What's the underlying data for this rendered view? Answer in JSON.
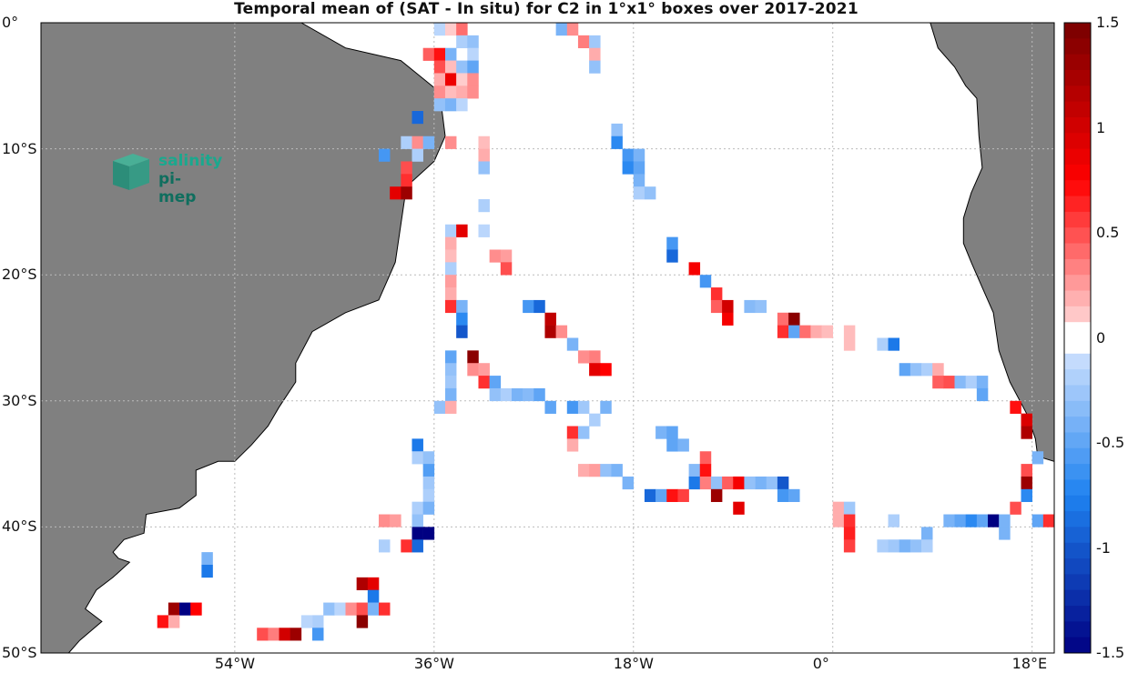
{
  "title": "Temporal mean of (SAT - In situ) for C2 in 1°x1° boxes over 2017-2021",
  "logo": {
    "line1": "salinity",
    "line2": "pi-mep"
  },
  "axes": {
    "x_ticks": [
      {
        "value": -54,
        "label": "54°W"
      },
      {
        "value": -36,
        "label": "36°W"
      },
      {
        "value": -18,
        "label": "18°W"
      },
      {
        "value": 0,
        "label": "0°"
      },
      {
        "value": 18,
        "label": "18°E"
      }
    ],
    "y_ticks": [
      {
        "value": 0,
        "label": "0°"
      },
      {
        "value": -10,
        "label": "10°S"
      },
      {
        "value": -20,
        "label": "20°S"
      },
      {
        "value": -30,
        "label": "30°S"
      },
      {
        "value": -40,
        "label": "40°S"
      },
      {
        "value": -50,
        "label": "50°S"
      }
    ],
    "lon_range": [
      -71.5,
      20
    ],
    "lat_range": [
      -50,
      0
    ],
    "grid": true
  },
  "colorbar": {
    "range": [
      -1.5,
      1.5
    ],
    "levels": 40,
    "ticks": [
      {
        "value": 1.5,
        "label": "1.5"
      },
      {
        "value": 1,
        "label": "1"
      },
      {
        "value": 0.5,
        "label": "0.5"
      },
      {
        "value": 0,
        "label": "0"
      },
      {
        "value": -0.5,
        "label": "-0.5"
      },
      {
        "value": -1,
        "label": "-1"
      },
      {
        "value": -1.5,
        "label": "-1.5"
      }
    ]
  },
  "colors": {
    "land": "#808080",
    "coast": "#000000",
    "ocean": "#ffffff",
    "grid": "#bbbbbb"
  },
  "land": {
    "south_america": [
      [
        -71.5,
        0
      ],
      [
        -48,
        0
      ],
      [
        -44,
        -2
      ],
      [
        -39,
        -3
      ],
      [
        -35.5,
        -5.5
      ],
      [
        -35,
        -9
      ],
      [
        -36,
        -11
      ],
      [
        -38.5,
        -13
      ],
      [
        -39,
        -16
      ],
      [
        -39.5,
        -19
      ],
      [
        -41,
        -22
      ],
      [
        -44,
        -23
      ],
      [
        -47,
        -24.5
      ],
      [
        -48.5,
        -27
      ],
      [
        -48.5,
        -28.5
      ],
      [
        -50,
        -30.5
      ],
      [
        -51,
        -32
      ],
      [
        -52.5,
        -33.5
      ],
      [
        -54,
        -34.8
      ],
      [
        -55.5,
        -34.8
      ],
      [
        -57.5,
        -35.5
      ],
      [
        -57.5,
        -37.5
      ],
      [
        -59,
        -38.5
      ],
      [
        -62,
        -39
      ],
      [
        -62.2,
        -40.5
      ],
      [
        -64,
        -41
      ],
      [
        -65,
        -42
      ],
      [
        -64.5,
        -42.5
      ],
      [
        -63.5,
        -42.8
      ],
      [
        -65,
        -44
      ],
      [
        -66.5,
        -45
      ],
      [
        -67.5,
        -46.5
      ],
      [
        -66,
        -47.5
      ],
      [
        -68,
        -49
      ],
      [
        -69,
        -50
      ],
      [
        -71.5,
        -50
      ]
    ],
    "africa": [
      [
        8.8,
        0
      ],
      [
        9.5,
        -2
      ],
      [
        11,
        -3.5
      ],
      [
        12,
        -5
      ],
      [
        13,
        -6
      ],
      [
        13.2,
        -9
      ],
      [
        13.5,
        -11.5
      ],
      [
        12.5,
        -13.5
      ],
      [
        11.8,
        -15.5
      ],
      [
        11.8,
        -17.5
      ],
      [
        12.5,
        -19
      ],
      [
        13.5,
        -21
      ],
      [
        14.5,
        -23
      ],
      [
        15,
        -26
      ],
      [
        16,
        -28.5
      ],
      [
        17.5,
        -31
      ],
      [
        18.3,
        -33
      ],
      [
        18.5,
        -34.4
      ],
      [
        20,
        -34.8
      ],
      [
        20,
        0
      ]
    ]
  },
  "data_cells": [
    [
      -35.5,
      -0.5,
      -0.15
    ],
    [
      -34.5,
      -0.5,
      0.1
    ],
    [
      -33.5,
      -0.5,
      0.4
    ],
    [
      -24.5,
      -0.5,
      -0.4
    ],
    [
      -23.5,
      -0.5,
      0.3
    ],
    [
      -33.5,
      -1.5,
      -0.2
    ],
    [
      -32.5,
      -1.5,
      -0.3
    ],
    [
      -22.5,
      -1.5,
      0.35
    ],
    [
      -21.5,
      -1.5,
      -0.25
    ],
    [
      -36.5,
      -2.5,
      0.45
    ],
    [
      -35.5,
      -2.5,
      0.7
    ],
    [
      -34.5,
      -2.5,
      -0.4
    ],
    [
      -32.5,
      -2.5,
      -0.15
    ],
    [
      -21.5,
      -2.5,
      0.2
    ],
    [
      -35.5,
      -3.5,
      0.5
    ],
    [
      -34.5,
      -3.5,
      0.15
    ],
    [
      -33.5,
      -3.5,
      -0.3
    ],
    [
      -32.5,
      -3.5,
      -0.5
    ],
    [
      -21.5,
      -3.5,
      -0.3
    ],
    [
      -35.5,
      -4.5,
      0.2
    ],
    [
      -34.5,
      -4.5,
      0.85
    ],
    [
      -33.5,
      -4.5,
      0.1
    ],
    [
      -32.5,
      -4.5,
      0.3
    ],
    [
      -35.5,
      -5.5,
      0.3
    ],
    [
      -34.5,
      -5.5,
      0.15
    ],
    [
      -33.5,
      -5.5,
      0.2
    ],
    [
      -32.5,
      -5.5,
      0.3
    ],
    [
      -35.5,
      -6.5,
      -0.3
    ],
    [
      -34.5,
      -6.5,
      -0.4
    ],
    [
      -33.5,
      -6.5,
      -0.15
    ],
    [
      -37.5,
      -7.5,
      -0.9
    ],
    [
      -19.5,
      -8.5,
      -0.3
    ],
    [
      -38.5,
      -9.5,
      -0.2
    ],
    [
      -37.5,
      -9.5,
      0.3
    ],
    [
      -36.5,
      -9.5,
      -0.4
    ],
    [
      -34.5,
      -9.5,
      0.3
    ],
    [
      -31.5,
      -9.5,
      0.15
    ],
    [
      -19.5,
      -9.5,
      -0.7
    ],
    [
      -40.5,
      -10.5,
      -0.6
    ],
    [
      -37.5,
      -10.5,
      -0.2
    ],
    [
      -31.5,
      -10.5,
      0.2
    ],
    [
      -18.5,
      -10.5,
      -0.6
    ],
    [
      -17.5,
      -10.5,
      -0.4
    ],
    [
      -38.5,
      -11.5,
      0.5
    ],
    [
      -31.5,
      -11.5,
      -0.3
    ],
    [
      -18.5,
      -11.5,
      -0.7
    ],
    [
      -17.5,
      -11.5,
      -0.5
    ],
    [
      -38.5,
      -12.5,
      0.6
    ],
    [
      -17.5,
      -12.5,
      -0.4
    ],
    [
      -39.5,
      -13.5,
      0.9
    ],
    [
      -38.5,
      -13.5,
      1.3
    ],
    [
      -17.5,
      -13.5,
      -0.2
    ],
    [
      -16.5,
      -13.5,
      -0.3
    ],
    [
      -31.5,
      -14.5,
      -0.2
    ],
    [
      -34.5,
      -16.5,
      -0.2
    ],
    [
      -33.5,
      -16.5,
      0.9
    ],
    [
      -31.5,
      -16.5,
      -0.15
    ],
    [
      -34.5,
      -17.5,
      0.2
    ],
    [
      -14.5,
      -17.5,
      -0.6
    ],
    [
      -34.5,
      -18.5,
      0.15
    ],
    [
      -30.5,
      -18.5,
      0.3
    ],
    [
      -29.5,
      -18.5,
      0.25
    ],
    [
      -14.5,
      -18.5,
      -0.9
    ],
    [
      -34.5,
      -19.5,
      -0.2
    ],
    [
      -29.5,
      -19.5,
      0.5
    ],
    [
      -12.5,
      -19.5,
      0.8
    ],
    [
      -34.5,
      -20.5,
      0.25
    ],
    [
      -11.5,
      -20.5,
      -0.6
    ],
    [
      -34.5,
      -21.5,
      0.2
    ],
    [
      -10.5,
      -21.5,
      0.6
    ],
    [
      -34.5,
      -22.5,
      0.6
    ],
    [
      -33.5,
      -22.5,
      -0.4
    ],
    [
      -27.5,
      -22.5,
      -0.6
    ],
    [
      -26.5,
      -22.5,
      -0.9
    ],
    [
      -10.5,
      -22.5,
      0.45
    ],
    [
      -9.5,
      -22.5,
      1.0
    ],
    [
      -7.5,
      -22.5,
      -0.35
    ],
    [
      -6.5,
      -22.5,
      -0.3
    ],
    [
      -33.5,
      -23.5,
      -0.7
    ],
    [
      -25.5,
      -23.5,
      1.1
    ],
    [
      -9.5,
      -23.5,
      0.8
    ],
    [
      -4.5,
      -23.5,
      0.4
    ],
    [
      -3.5,
      -23.5,
      1.4
    ],
    [
      -33.5,
      -24.5,
      -1.0
    ],
    [
      -25.5,
      -24.5,
      1.2
    ],
    [
      -24.5,
      -24.5,
      0.3
    ],
    [
      -4.5,
      -24.5,
      0.6
    ],
    [
      -3.5,
      -24.5,
      -0.5
    ],
    [
      -2.5,
      -24.5,
      0.4
    ],
    [
      -1.5,
      -24.5,
      0.2
    ],
    [
      -0.5,
      -24.5,
      0.15
    ],
    [
      1.5,
      -24.5,
      0.15
    ],
    [
      -23.5,
      -25.5,
      -0.4
    ],
    [
      1.5,
      -25.5,
      0.15
    ],
    [
      4.5,
      -25.5,
      -0.2
    ],
    [
      5.5,
      -25.5,
      -0.8
    ],
    [
      -34.5,
      -26.5,
      -0.5
    ],
    [
      -32.5,
      -26.5,
      1.4
    ],
    [
      -22.5,
      -26.5,
      0.3
    ],
    [
      -21.5,
      -26.5,
      0.35
    ],
    [
      -34.5,
      -27.5,
      -0.3
    ],
    [
      -32.5,
      -27.5,
      0.3
    ],
    [
      -31.5,
      -27.5,
      0.25
    ],
    [
      -21.5,
      -27.5,
      0.9
    ],
    [
      -20.5,
      -27.5,
      0.75
    ],
    [
      6.5,
      -27.5,
      -0.5
    ],
    [
      7.5,
      -27.5,
      -0.3
    ],
    [
      8.5,
      -27.5,
      -0.2
    ],
    [
      9.5,
      -27.5,
      0.2
    ],
    [
      -34.5,
      -28.5,
      -0.25
    ],
    [
      -31.5,
      -28.5,
      0.6
    ],
    [
      -30.5,
      -28.5,
      -0.5
    ],
    [
      9.5,
      -28.5,
      0.45
    ],
    [
      10.5,
      -28.5,
      0.5
    ],
    [
      11.5,
      -28.5,
      -0.35
    ],
    [
      12.5,
      -28.5,
      -0.2
    ],
    [
      13.5,
      -28.5,
      -0.4
    ],
    [
      -34.5,
      -29.5,
      -0.4
    ],
    [
      -30.5,
      -29.5,
      -0.3
    ],
    [
      -29.5,
      -29.5,
      -0.2
    ],
    [
      -28.5,
      -29.5,
      -0.4
    ],
    [
      -27.5,
      -29.5,
      -0.35
    ],
    [
      -26.5,
      -29.5,
      -0.5
    ],
    [
      13.5,
      -29.5,
      -0.5
    ],
    [
      -35.5,
      -30.5,
      -0.3
    ],
    [
      -34.5,
      -30.5,
      0.2
    ],
    [
      -25.5,
      -30.5,
      -0.5
    ],
    [
      -23.5,
      -30.5,
      -0.6
    ],
    [
      -22.5,
      -30.5,
      -0.25
    ],
    [
      -20.5,
      -30.5,
      -0.4
    ],
    [
      16.5,
      -30.5,
      0.7
    ],
    [
      -21.5,
      -31.5,
      -0.2
    ],
    [
      17.5,
      -31.5,
      0.95
    ],
    [
      -23.5,
      -32.5,
      0.6
    ],
    [
      -22.5,
      -32.5,
      -0.3
    ],
    [
      -15.5,
      -32.5,
      -0.4
    ],
    [
      -14.5,
      -32.5,
      -0.5
    ],
    [
      17.5,
      -32.5,
      1.2
    ],
    [
      -37.5,
      -33.5,
      -0.8
    ],
    [
      -23.5,
      -33.5,
      0.2
    ],
    [
      -14.5,
      -33.5,
      -0.5
    ],
    [
      -13.5,
      -33.5,
      -0.4
    ],
    [
      -37.5,
      -34.5,
      -0.2
    ],
    [
      -36.5,
      -34.5,
      -0.3
    ],
    [
      -11.5,
      -34.5,
      0.45
    ],
    [
      18.5,
      -34.5,
      -0.4
    ],
    [
      -36.5,
      -35.5,
      -0.55
    ],
    [
      -22.5,
      -35.5,
      0.2
    ],
    [
      -21.5,
      -35.5,
      0.25
    ],
    [
      -20.5,
      -35.5,
      -0.3
    ],
    [
      -19.5,
      -35.5,
      -0.4
    ],
    [
      -12.5,
      -35.5,
      -0.35
    ],
    [
      -11.5,
      -35.5,
      0.7
    ],
    [
      17.5,
      -35.5,
      0.5
    ],
    [
      -36.5,
      -36.5,
      -0.25
    ],
    [
      -18.5,
      -36.5,
      -0.4
    ],
    [
      -12.5,
      -36.5,
      -0.8
    ],
    [
      -11.5,
      -36.5,
      0.35
    ],
    [
      -10.5,
      -36.5,
      -0.3
    ],
    [
      -9.5,
      -36.5,
      0.45
    ],
    [
      -8.5,
      -36.5,
      0.8
    ],
    [
      -7.5,
      -36.5,
      -0.3
    ],
    [
      -6.5,
      -36.5,
      -0.4
    ],
    [
      -5.5,
      -36.5,
      -0.3
    ],
    [
      -4.5,
      -36.5,
      -1.0
    ],
    [
      17.5,
      -36.5,
      1.3
    ],
    [
      -36.5,
      -37.5,
      -0.2
    ],
    [
      -16.5,
      -37.5,
      -0.9
    ],
    [
      -15.5,
      -37.5,
      -0.5
    ],
    [
      -14.5,
      -37.5,
      0.7
    ],
    [
      -13.5,
      -37.5,
      0.55
    ],
    [
      -10.5,
      -37.5,
      1.3
    ],
    [
      -4.5,
      -37.5,
      -0.6
    ],
    [
      -3.5,
      -37.5,
      -0.5
    ],
    [
      17.5,
      -37.5,
      -0.7
    ],
    [
      -37.5,
      -38.5,
      -0.2
    ],
    [
      -36.5,
      -38.5,
      -0.4
    ],
    [
      -8.5,
      -38.5,
      0.9
    ],
    [
      0.5,
      -38.5,
      0.2
    ],
    [
      1.5,
      -38.5,
      -0.25
    ],
    [
      16.5,
      -38.5,
      0.5
    ],
    [
      -37.5,
      -39.5,
      -0.3
    ],
    [
      -40.5,
      -39.5,
      0.3
    ],
    [
      -39.5,
      -39.5,
      0.25
    ],
    [
      0.5,
      -39.5,
      0.2
    ],
    [
      1.5,
      -39.5,
      0.6
    ],
    [
      5.5,
      -39.5,
      -0.2
    ],
    [
      10.5,
      -39.5,
      -0.4
    ],
    [
      11.5,
      -39.5,
      -0.5
    ],
    [
      12.5,
      -39.5,
      -0.7
    ],
    [
      13.5,
      -39.5,
      -0.5
    ],
    [
      14.5,
      -39.5,
      -1.5
    ],
    [
      15.5,
      -39.5,
      -0.4
    ],
    [
      18.5,
      -39.5,
      -0.5
    ],
    [
      19.5,
      -39.5,
      0.6
    ],
    [
      -37.5,
      -40.5,
      -1.5
    ],
    [
      -36.5,
      -40.5,
      -1.5
    ],
    [
      1.5,
      -40.5,
      0.65
    ],
    [
      8.5,
      -40.5,
      -0.4
    ],
    [
      15.5,
      -40.5,
      -0.4
    ],
    [
      -40.5,
      -41.5,
      -0.2
    ],
    [
      -38.5,
      -41.5,
      0.6
    ],
    [
      -37.5,
      -41.5,
      -0.9
    ],
    [
      1.5,
      -41.5,
      0.55
    ],
    [
      4.5,
      -41.5,
      -0.2
    ],
    [
      5.5,
      -41.5,
      -0.25
    ],
    [
      6.5,
      -41.5,
      -0.4
    ],
    [
      7.5,
      -41.5,
      -0.3
    ],
    [
      8.5,
      -41.5,
      -0.2
    ],
    [
      -56.5,
      -42.5,
      -0.4
    ],
    [
      -56.5,
      -43.5,
      -0.8
    ],
    [
      -42.5,
      -44.5,
      1.2
    ],
    [
      -41.5,
      -44.5,
      0.9
    ],
    [
      -41.5,
      -45.5,
      -0.8
    ],
    [
      -59.5,
      -46.5,
      1.3
    ],
    [
      -58.5,
      -46.5,
      -1.5
    ],
    [
      -57.5,
      -46.5,
      0.75
    ],
    [
      -45.5,
      -46.5,
      -0.3
    ],
    [
      -44.5,
      -46.5,
      -0.15
    ],
    [
      -43.5,
      -46.5,
      0.3
    ],
    [
      -42.5,
      -46.5,
      0.5
    ],
    [
      -41.5,
      -46.5,
      -0.4
    ],
    [
      -40.5,
      -46.5,
      0.6
    ],
    [
      -60.5,
      -47.5,
      0.7
    ],
    [
      -59.5,
      -47.5,
      0.2
    ],
    [
      -46.5,
      -47.5,
      -0.2
    ],
    [
      -47.5,
      -47.5,
      -0.15
    ],
    [
      -42.5,
      -47.5,
      1.4
    ],
    [
      -51.5,
      -48.5,
      0.5
    ],
    [
      -50.5,
      -48.5,
      0.35
    ],
    [
      -49.5,
      -48.5,
      1.0
    ],
    [
      -48.5,
      -48.5,
      1.3
    ],
    [
      -46.5,
      -48.5,
      -0.6
    ]
  ]
}
